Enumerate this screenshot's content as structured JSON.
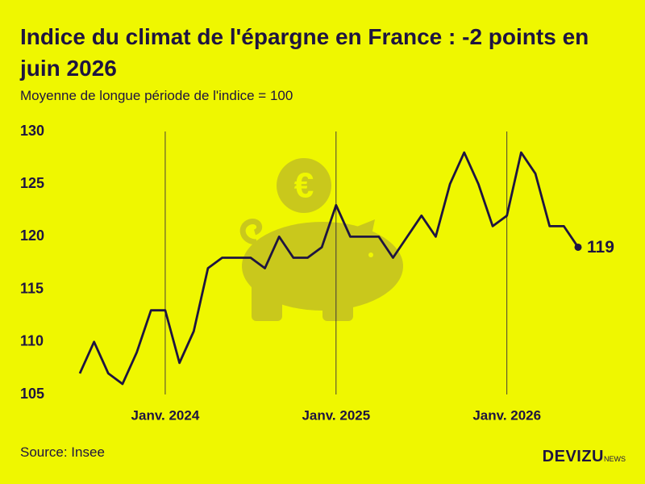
{
  "chart_data": {
    "type": "line",
    "title": "Indice du climat de l'épargne en France : -2 points en juin 2026",
    "subtitle": "Moyenne de longue période de l'indice = 100",
    "categories": [
      null,
      null,
      null,
      null,
      null,
      null,
      "Janv. 2024",
      null,
      null,
      null,
      null,
      null,
      null,
      null,
      null,
      null,
      null,
      null,
      "Janv. 2025",
      null,
      null,
      null,
      null,
      null,
      null,
      null,
      null,
      null,
      null,
      null,
      "Janv. 2026",
      null,
      null,
      null,
      null,
      null
    ],
    "values": [
      107,
      110,
      107,
      106,
      109,
      113,
      113,
      108,
      111,
      117,
      118,
      118,
      118,
      117,
      120,
      118,
      118,
      119,
      123,
      120,
      120,
      120,
      118,
      120,
      122,
      120,
      125,
      128,
      125,
      121,
      122,
      128,
      126,
      121,
      121,
      119
    ],
    "color": "#1e1440",
    "ylim": [
      105,
      130
    ],
    "yticks": [
      105,
      110,
      115,
      120,
      125,
      130
    ],
    "grid": false,
    "source": "Source: Insee",
    "brand": "DEVIZU",
    "brand_suffix": "NEWS"
  }
}
